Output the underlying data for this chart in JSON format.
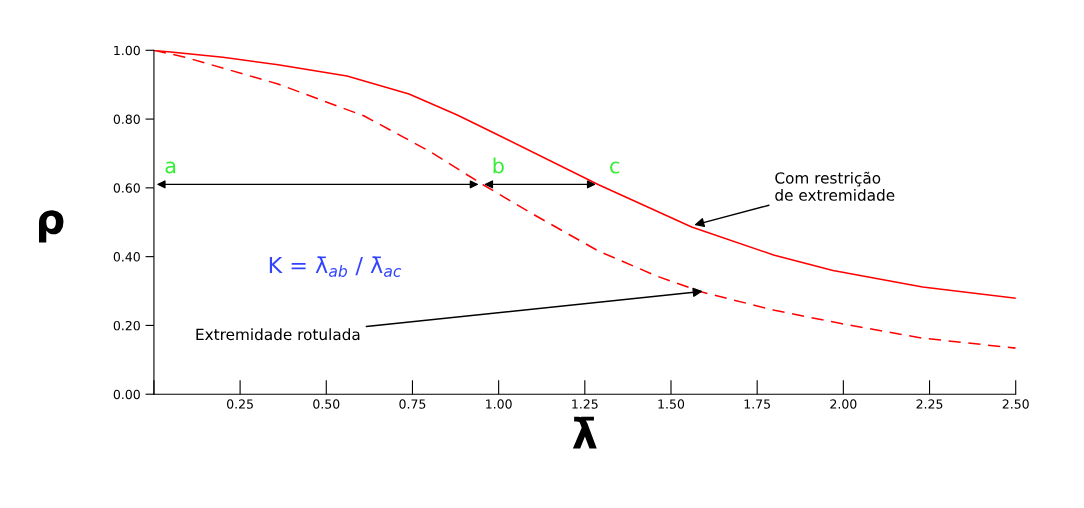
{
  "chart_data": {
    "type": "line",
    "xlabel": "λ̄",
    "ylabel": "ρ",
    "series": [
      {
        "color": "#ff0000",
        "line_style": "solid",
        "x": [
          0,
          0.2,
          0.36,
          0.56,
          0.74,
          0.88,
          1.0,
          1.29,
          1.56,
          1.8,
          1.97,
          2.23,
          2.5
        ],
        "values": [
          1.0,
          0.98,
          0.958,
          0.925,
          0.873,
          0.812,
          0.753,
          0.609,
          0.486,
          0.404,
          0.36,
          0.312,
          0.279
        ]
      },
      {
        "color": "#ff0000",
        "line_style": "dashed",
        "x": [
          0,
          0.09,
          0.36,
          0.61,
          0.8,
          0.95,
          1.09,
          1.29,
          1.46,
          1.59,
          1.8,
          1.99,
          2.23,
          2.5
        ],
        "values": [
          1.0,
          0.98,
          0.902,
          0.809,
          0.706,
          0.612,
          0.529,
          0.416,
          0.343,
          0.297,
          0.244,
          0.206,
          0.163,
          0.134
        ]
      }
    ],
    "xlim": [
      0,
      2.5
    ],
    "ylim": [
      0,
      1
    ],
    "xticks": [
      {
        "value": 0,
        "label": null
      },
      {
        "value": 0.25,
        "label": "0.25"
      },
      {
        "value": 0.5,
        "label": "0.50"
      },
      {
        "value": 0.75,
        "label": "0.75"
      },
      {
        "value": 1,
        "label": "1.00"
      },
      {
        "value": 1.25,
        "label": "1.25"
      },
      {
        "value": 1.5,
        "label": "1.50"
      },
      {
        "value": 1.75,
        "label": "1.75"
      },
      {
        "value": 2,
        "label": "2.00"
      },
      {
        "value": 2.25,
        "label": "2.25"
      },
      {
        "value": 2.5,
        "label": "2.50"
      }
    ],
    "yticks": [
      {
        "value": 0,
        "label": "0.00"
      },
      {
        "value": 0.2,
        "label": "0.20"
      },
      {
        "value": 0.4,
        "label": "0.40"
      },
      {
        "value": 0.6,
        "label": "0.60"
      },
      {
        "value": 0.8,
        "label": "0.80"
      },
      {
        "value": 1,
        "label": "1.00"
      }
    ],
    "grid": false,
    "legend": false,
    "annotations": [
      "a",
      {
        "text": "b",
        "x": 0.95,
        "y": 0.61
      },
      {
        "text": "c",
        "x": 1.29,
        "y": 0.61
      },
      {
        "text": "Com restrição\nde extremidade",
        "x": 1.56,
        "y": 0.49
      },
      {
        "text": "Extremidade rotulada",
        "x": 1.6,
        "y": 0.3
      },
      "K = λ̄$_{ab}$ / λ̄$_{ac}$"
    ]
  }
}
